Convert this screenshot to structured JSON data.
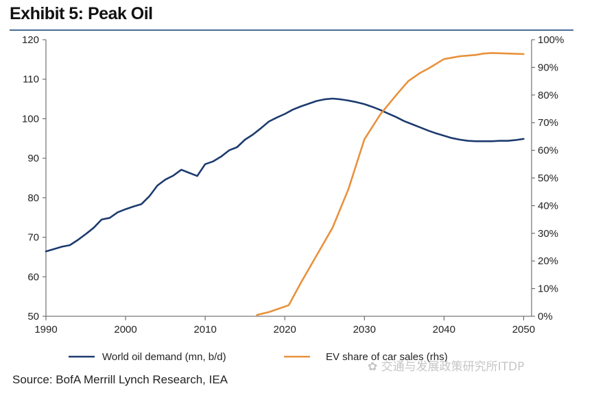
{
  "header": {
    "title": "Exhibit 5: Peak Oil"
  },
  "source": "Source:  BofA Merrill Lynch Research, IEA",
  "watermark": "交通与发展政策研究所ITDP",
  "colors": {
    "oil": "#1c3a6e",
    "ev": "#e8913a",
    "rule": "#4a6a94"
  },
  "chart_data": {
    "type": "line",
    "title": "Exhibit 5: Peak Oil",
    "x_ticks": [
      1990,
      2000,
      2010,
      2020,
      2030,
      2040,
      2050
    ],
    "xlim": [
      1990,
      2051
    ],
    "y_left": {
      "lim": [
        50,
        120
      ],
      "ticks": [
        50,
        60,
        70,
        80,
        90,
        100,
        110,
        120
      ],
      "labels": [
        "50",
        "60",
        "70",
        "80",
        "90",
        "100",
        "110",
        "120"
      ]
    },
    "y_right": {
      "lim": [
        0,
        100
      ],
      "ticks": [
        0,
        10,
        20,
        30,
        40,
        50,
        60,
        70,
        80,
        90,
        100
      ],
      "labels": [
        "0%",
        "10%",
        "20%",
        "30%",
        "40%",
        "50%",
        "60%",
        "70%",
        "80%",
        "90%",
        "100%"
      ]
    },
    "legend_position": "bottom",
    "series": [
      {
        "name": "World oil demand (mn, b/d)",
        "axis": "left",
        "color": "#1c3a6e",
        "x": [
          1990,
          1991,
          1992,
          1993,
          1994,
          1995,
          1996,
          1997,
          1998,
          1999,
          2000,
          2001,
          2002,
          2003,
          2004,
          2005,
          2006,
          2007,
          2008,
          2009,
          2010,
          2011,
          2012,
          2013,
          2014,
          2015,
          2016,
          2017,
          2018,
          2019,
          2020,
          2021,
          2022,
          2023,
          2024,
          2025,
          2026,
          2027,
          2028,
          2029,
          2030,
          2031,
          2032,
          2033,
          2034,
          2035,
          2036,
          2037,
          2038,
          2039,
          2040,
          2041,
          2042,
          2043,
          2044,
          2045,
          2046,
          2047,
          2048,
          2049,
          2050
        ],
        "values": [
          66.4,
          67.0,
          67.6,
          68.0,
          69.3,
          70.8,
          72.4,
          74.5,
          74.9,
          76.3,
          77.1,
          77.8,
          78.4,
          80.4,
          83.1,
          84.6,
          85.6,
          87.1,
          86.3,
          85.5,
          88.5,
          89.2,
          90.4,
          92.0,
          92.8,
          94.7,
          96.0,
          97.6,
          99.3,
          100.3,
          101.2,
          102.3,
          103.1,
          103.8,
          104.5,
          104.9,
          105.1,
          104.9,
          104.6,
          104.2,
          103.7,
          103.0,
          102.2,
          101.3,
          100.4,
          99.4,
          98.6,
          97.8,
          97.0,
          96.3,
          95.7,
          95.1,
          94.7,
          94.4,
          94.3,
          94.3,
          94.3,
          94.4,
          94.4,
          94.6,
          94.9
        ]
      },
      {
        "name": "EV share of car sales (rhs)",
        "axis": "right",
        "color": "#e8913a",
        "x": [
          2016.5,
          2018,
          2020,
          2020.5,
          2022,
          2024,
          2026,
          2028,
          2030,
          2032,
          2034,
          2035.5,
          2037,
          2038,
          2040,
          2042,
          2044,
          2045,
          2046,
          2048,
          2050
        ],
        "values": [
          0.5,
          1.5,
          3.5,
          4,
          12,
          22,
          32,
          46,
          64,
          73,
          80,
          85,
          88,
          89.5,
          93,
          94,
          94.5,
          95,
          95.2,
          95,
          94.8
        ]
      }
    ]
  }
}
